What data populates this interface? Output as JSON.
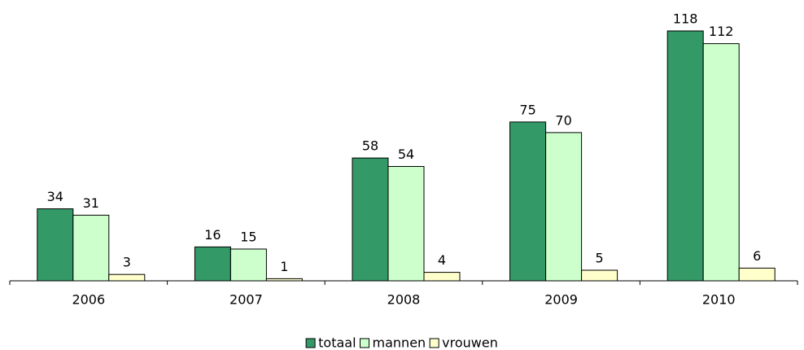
{
  "chart_data": {
    "type": "bar",
    "categories": [
      "2006",
      "2007",
      "2008",
      "2009",
      "2010"
    ],
    "series": [
      {
        "name": "totaal",
        "color": "#339966",
        "values": [
          34,
          16,
          58,
          75,
          118
        ]
      },
      {
        "name": "mannen",
        "color": "#ccffcc",
        "values": [
          31,
          15,
          54,
          70,
          112
        ]
      },
      {
        "name": "vrouwen",
        "color": "#ffffcc",
        "values": [
          3,
          1,
          4,
          5,
          6
        ]
      }
    ],
    "legend": "bottom"
  }
}
